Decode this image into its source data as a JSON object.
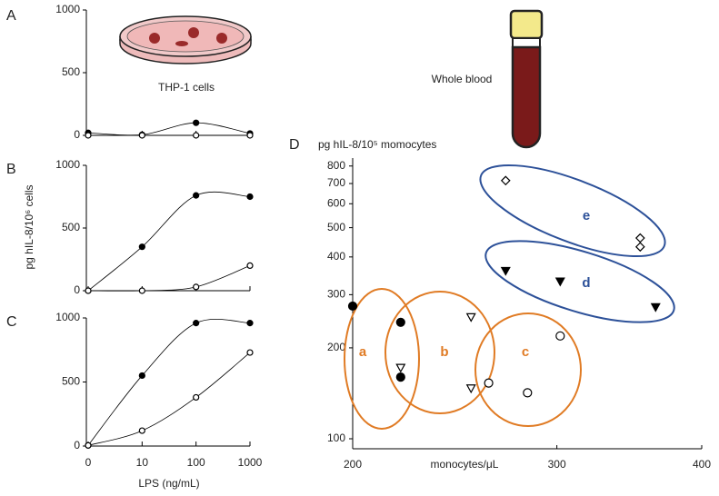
{
  "chart_data": [
    {
      "type": "line",
      "panel": "A",
      "annotation": "THP-1 cells",
      "categories": [
        null,
        null,
        null,
        null
      ],
      "ylim": [
        0,
        1000
      ],
      "yticks": [
        0,
        500,
        1000
      ],
      "series": [
        {
          "color": "#000000",
          "marker": "circle",
          "filled": true,
          "values": [
            20,
            5,
            100,
            15
          ]
        },
        {
          "color": "#000000",
          "marker": "circle",
          "filled": false,
          "values": [
            0,
            0,
            0,
            0
          ]
        }
      ]
    },
    {
      "type": "line",
      "panel": "B",
      "ylabel": "pg hIL-8/10⁶ cells",
      "categories": [
        null,
        null,
        null,
        null
      ],
      "ylim": [
        0,
        1000
      ],
      "yticks": [
        0,
        500,
        1000
      ],
      "series": [
        {
          "color": "#000000",
          "marker": "circle",
          "filled": true,
          "values": [
            0,
            350,
            760,
            750
          ]
        },
        {
          "color": "#000000",
          "marker": "circle",
          "filled": false,
          "values": [
            0,
            0,
            30,
            200
          ]
        }
      ]
    },
    {
      "type": "line",
      "panel": "C",
      "xlabel": "LPS (ng/mL)",
      "categories": [
        "0",
        "10",
        "100",
        "1000"
      ],
      "ylim": [
        0,
        1000
      ],
      "yticks": [
        0,
        500,
        1000
      ],
      "series": [
        {
          "color": "#000000",
          "marker": "circle",
          "filled": true,
          "values": [
            5,
            550,
            960,
            960
          ]
        },
        {
          "color": "#000000",
          "marker": "circle",
          "filled": false,
          "values": [
            5,
            120,
            380,
            730
          ]
        }
      ]
    },
    {
      "type": "scatter",
      "panel": "D",
      "annotation": "Whole blood",
      "ylabel": "pg hIL-8/10⁵ momocytes",
      "xlabel": "monocytes/μL",
      "xscale": "log",
      "yscale": "log",
      "xlim": [
        200,
        400
      ],
      "xticks": [
        200,
        300,
        400
      ],
      "ylim": [
        100,
        850
      ],
      "yticks": [
        100,
        200,
        300,
        400,
        500,
        600,
        700,
        800
      ],
      "groups": [
        {
          "label": "a",
          "color": "#e07b24"
        },
        {
          "label": "b",
          "color": "#e07b24"
        },
        {
          "label": "c",
          "color": "#e07b24"
        },
        {
          "label": "d",
          "color": "#2d5199"
        },
        {
          "label": "e",
          "color": "#2d5199"
        }
      ],
      "series": [
        {
          "color": "#000000",
          "marker": "circle",
          "filled": true,
          "x": [
            200,
            220,
            220
          ],
          "values": [
            275,
            243,
            160
          ]
        },
        {
          "color": "#000000",
          "marker": "triangle-down",
          "filled": false,
          "x": [
            253,
            220,
            253
          ],
          "values": [
            253,
            172,
            147
          ]
        },
        {
          "color": "#000000",
          "marker": "circle",
          "filled": false,
          "x": [
            262,
            283,
            302
          ],
          "values": [
            153,
            142,
            219
          ]
        },
        {
          "color": "#000000",
          "marker": "triangle-down",
          "filled": true,
          "x": [
            271,
            302,
            365
          ],
          "values": [
            360,
            332,
            273
          ]
        },
        {
          "color": "#000000",
          "marker": "diamond",
          "filled": false,
          "x": [
            271,
            354,
            354
          ],
          "values": [
            716,
            462,
            432
          ]
        }
      ]
    }
  ]
}
